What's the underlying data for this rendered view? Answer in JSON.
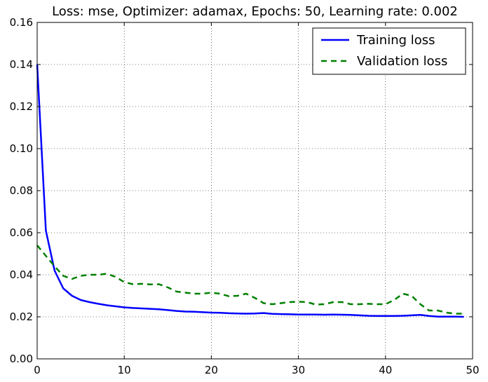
{
  "chart_data": {
    "type": "line",
    "title": "Loss: mse, Optimizer: adamax, Epochs: 50, Learning rate: 0.002",
    "xlabel": "",
    "ylabel": "",
    "xlim": [
      0,
      50
    ],
    "ylim": [
      0,
      0.16
    ],
    "xticks": [
      "0",
      "10",
      "20",
      "30",
      "40",
      "50"
    ],
    "yticks": [
      "0.00",
      "0.02",
      "0.04",
      "0.06",
      "0.08",
      "0.10",
      "0.12",
      "0.14",
      "0.16"
    ],
    "grid": true,
    "legend_position": "top-right",
    "x": [
      0,
      1,
      2,
      3,
      4,
      5,
      6,
      7,
      8,
      9,
      10,
      11,
      12,
      13,
      14,
      15,
      16,
      17,
      18,
      19,
      20,
      21,
      22,
      23,
      24,
      25,
      26,
      27,
      28,
      29,
      30,
      31,
      32,
      33,
      34,
      35,
      36,
      37,
      38,
      39,
      40,
      41,
      42,
      43,
      44,
      45,
      46,
      47,
      48,
      49
    ],
    "series": [
      {
        "name": "Training loss",
        "color": "#0000ff",
        "style": "solid",
        "values": [
          0.14,
          0.061,
          0.042,
          0.0335,
          0.03,
          0.028,
          0.027,
          0.0262,
          0.0255,
          0.025,
          0.0245,
          0.0242,
          0.024,
          0.0238,
          0.0236,
          0.0232,
          0.0228,
          0.0225,
          0.0224,
          0.0222,
          0.022,
          0.0219,
          0.0217,
          0.0216,
          0.0215,
          0.0216,
          0.0218,
          0.0214,
          0.0213,
          0.0212,
          0.0211,
          0.0211,
          0.0211,
          0.021,
          0.0211,
          0.021,
          0.0209,
          0.0207,
          0.0205,
          0.0204,
          0.0204,
          0.0204,
          0.0205,
          0.0207,
          0.0209,
          0.0204,
          0.0201,
          0.0201,
          0.0201,
          0.02
        ]
      },
      {
        "name": "Validation loss",
        "color": "#008000",
        "style": "dashed",
        "values": [
          0.054,
          0.049,
          0.044,
          0.0395,
          0.038,
          0.0395,
          0.04,
          0.04,
          0.0405,
          0.039,
          0.0365,
          0.0355,
          0.0357,
          0.0354,
          0.0355,
          0.034,
          0.032,
          0.0315,
          0.031,
          0.031,
          0.0315,
          0.031,
          0.0298,
          0.03,
          0.031,
          0.029,
          0.0265,
          0.026,
          0.0265,
          0.027,
          0.0272,
          0.027,
          0.0258,
          0.026,
          0.027,
          0.027,
          0.026,
          0.026,
          0.0262,
          0.026,
          0.026,
          0.028,
          0.031,
          0.03,
          0.026,
          0.023,
          0.023,
          0.022,
          0.0215,
          0.0215
        ]
      }
    ]
  }
}
